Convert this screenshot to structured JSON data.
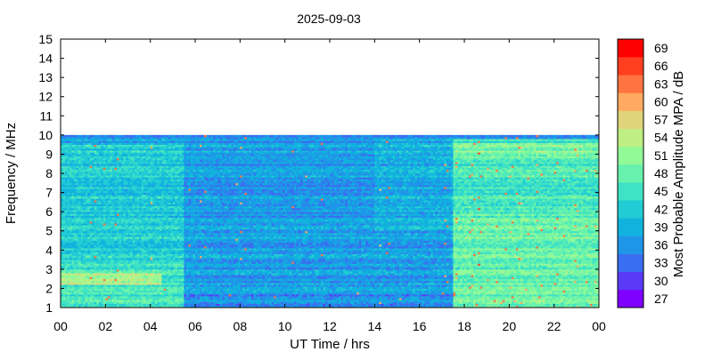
{
  "chart_data": {
    "type": "heatmap",
    "title": "2025-09-03",
    "xlabel": "UT Time / hrs",
    "ylabel": "Frequency / MHz",
    "xlim": [
      0,
      24
    ],
    "ylim": [
      1,
      15
    ],
    "x_ticks": [
      "00",
      "02",
      "04",
      "06",
      "08",
      "10",
      "12",
      "14",
      "16",
      "18",
      "20",
      "22",
      "00"
    ],
    "y_ticks": [
      "1",
      "2",
      "3",
      "4",
      "5",
      "6",
      "7",
      "8",
      "9",
      "10",
      "11",
      "12",
      "13",
      "14",
      "15"
    ],
    "data_frequency_range_mhz": [
      1,
      10
    ],
    "colorbar": {
      "label": "Most Probable Amplitude MPA / dB",
      "ticks": [
        "69",
        "66",
        "63",
        "60",
        "57",
        "54",
        "51",
        "48",
        "45",
        "42",
        "39",
        "36",
        "33",
        "30",
        "27"
      ],
      "levels": [
        27,
        30,
        33,
        36,
        39,
        42,
        45,
        48,
        51,
        54,
        57,
        60,
        63,
        66,
        69
      ],
      "colors": [
        "#7f00ff",
        "#5a3af6",
        "#3a6ef0",
        "#1f95e8",
        "#11b3de",
        "#22ccd4",
        "#3fe2c4",
        "#66f2ad",
        "#92f997",
        "#bfef84",
        "#e0d47a",
        "#ffaa60",
        "#ff7440",
        "#ff3f20",
        "#ff0000"
      ]
    }
  }
}
